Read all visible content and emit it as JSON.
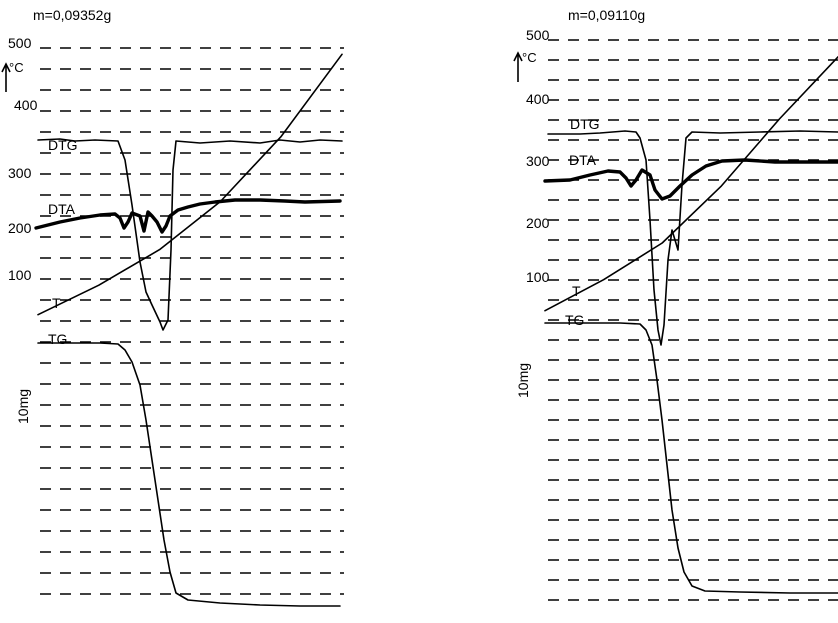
{
  "chart_data": [
    {
      "type": "line",
      "title": "m=0,09352g",
      "temperature_axis": {
        "unit": "°C",
        "ticks": [
          "500",
          "400",
          "300",
          "200",
          "100"
        ],
        "ylim": [
          0,
          500
        ]
      },
      "mass_scale_label": "10mg",
      "curve_labels": [
        "DTG",
        "DTA",
        "T",
        "TG"
      ],
      "grid": "dashed",
      "series": [
        {
          "name": "T",
          "x": [
            0,
            0.2,
            0.4,
            0.6,
            0.8,
            1.0
          ],
          "y": [
            20,
            72,
            135,
            220,
            335,
            480
          ]
        },
        {
          "name": "DTG"
        },
        {
          "name": "DTA"
        },
        {
          "name": "TG"
        }
      ]
    },
    {
      "type": "line",
      "title": "m=0,09110g",
      "temperature_axis": {
        "unit": "°C",
        "ticks": [
          "500",
          "400",
          "300",
          "200",
          "100"
        ],
        "ylim": [
          0,
          500
        ]
      },
      "mass_scale_label": "10mg",
      "curve_labels": [
        "DTG",
        "DTA",
        "T",
        "TG"
      ],
      "grid": "dashed",
      "series": [
        {
          "name": "T",
          "x": [
            0,
            0.2,
            0.4,
            0.6,
            0.8,
            1.0
          ],
          "y": [
            20,
            75,
            140,
            240,
            360,
            470
          ]
        },
        {
          "name": "DTG"
        },
        {
          "name": "DTA"
        },
        {
          "name": "TG"
        }
      ]
    }
  ]
}
